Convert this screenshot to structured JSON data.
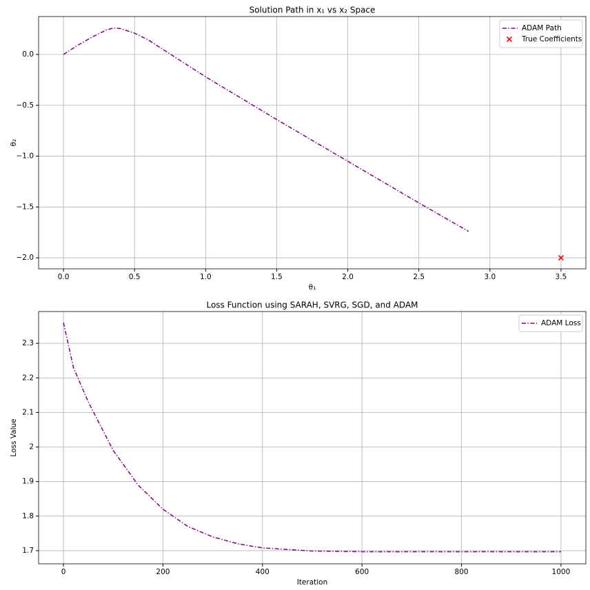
{
  "chart_data": [
    {
      "type": "line",
      "title": "Solution Path in x₁ vs x₂ Space",
      "x_label": "θ₁",
      "y_label": "θ₂",
      "xlim": [
        -0.175,
        3.675
      ],
      "ylim": [
        -2.108,
        0.373
      ],
      "xticks": [
        {
          "value": 0,
          "label": "0.0"
        },
        {
          "value": 0.5,
          "label": "0.5"
        },
        {
          "value": 1,
          "label": "1.0"
        },
        {
          "value": 1.5,
          "label": "1.5"
        },
        {
          "value": 2,
          "label": "2.0"
        },
        {
          "value": 2.5,
          "label": "2.5"
        },
        {
          "value": 3,
          "label": "3.0"
        },
        {
          "value": 3.5,
          "label": "3.5"
        }
      ],
      "yticks": [
        {
          "value": 0,
          "label": "0.0"
        },
        {
          "value": -0.5,
          "label": "−0.5"
        },
        {
          "value": -1,
          "label": "−1.0"
        },
        {
          "value": -1.5,
          "label": "−1.5"
        },
        {
          "value": -2,
          "label": "−2.0"
        }
      ],
      "grid": true,
      "legend": "upper right",
      "series": [
        {
          "name": "ADAM Path",
          "color": "#800080",
          "style": "dashdot",
          "x": [
            0,
            0.1,
            0.2,
            0.3,
            0.35,
            0.4,
            0.5,
            0.6,
            0.7,
            0.8,
            1.0,
            1.5,
            2.0,
            2.5,
            2.85
          ],
          "values": [
            0,
            0.09,
            0.17,
            0.24,
            0.26,
            0.255,
            0.21,
            0.14,
            0.05,
            -0.04,
            -0.22,
            -0.64,
            -1.05,
            -1.46,
            -1.74
          ]
        },
        {
          "name": "True Coefficients",
          "color": "#ff0000",
          "style": "scatter",
          "x": [
            3.5
          ],
          "values": [
            -2
          ]
        }
      ]
    },
    {
      "type": "line",
      "title": "Loss Function using SARAH, SVRG, SGD, and ADAM",
      "x_label": "Iteration",
      "y_label": "Loss Value",
      "xlim": [
        -50,
        1050
      ],
      "ylim": [
        1.662,
        2.392
      ],
      "xticks": [
        0,
        200,
        400,
        600,
        800,
        1000
      ],
      "yticks": [
        1.7,
        1.8,
        1.9,
        2.0,
        2.1,
        2.2,
        2.3
      ],
      "grid": true,
      "legend": "upper right",
      "series": [
        {
          "name": "ADAM Loss",
          "color": "#800080",
          "style": "dashdot",
          "x": [
            0,
            20,
            50,
            100,
            150,
            200,
            250,
            300,
            350,
            400,
            500,
            600,
            800,
            1000
          ],
          "values": [
            2.36,
            2.23,
            2.13,
            1.99,
            1.89,
            1.82,
            1.77,
            1.74,
            1.72,
            1.708,
            1.699,
            1.697,
            1.697,
            1.697
          ]
        }
      ]
    }
  ]
}
